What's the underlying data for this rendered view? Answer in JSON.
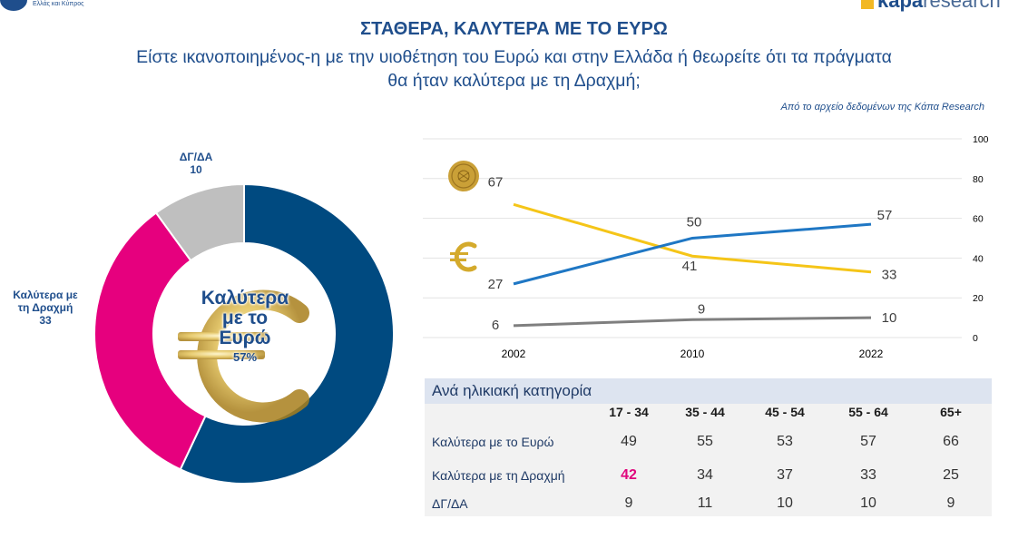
{
  "header": {
    "logo_left_text": "Ελλάς και Κύπρος",
    "logo_right_bold": "kapa",
    "logo_right_light": "research",
    "title": "ΣΤΑΘΕΡΑ, ΚΑΛΥΤΕΡΑ ΜΕ ΤΟ ΕΥΡΩ",
    "subtitle_line1": "Είστε ικανοποιημένος-η με την υιοθέτηση του Ευρώ και στην Ελλάδα ή θεωρείτε ότι τα πράγματα",
    "subtitle_line2": "θα ήταν καλύτερα με τη Δραχμή;",
    "source": "Από το αρχείο δεδομένων της Κάπα Research"
  },
  "colors": {
    "euro": "#004a80",
    "drachma": "#e6007e",
    "dk": "#bfbfbf",
    "line_euro": "#1f77c4",
    "line_drachma": "#f5c518",
    "line_dk": "#7f7f7f",
    "title": "#1f4e8c"
  },
  "icons": {
    "coin": "drachma-coin-icon",
    "euro": "euro-symbol-icon"
  },
  "donut": {
    "dk_label": "ΔΓ/ΔΑ",
    "dk_value": "10",
    "drachma_label_1": "Καλύτερα με",
    "drachma_label_2": "τη Δραχμή",
    "drachma_value": "33",
    "center_line1": "Καλύτερα",
    "center_line2": "με το",
    "center_line3": "Ευρώ",
    "center_value": "57%"
  },
  "chart_data": [
    {
      "type": "pie",
      "variant": "donut",
      "title": "",
      "slices": [
        {
          "label": "Καλύτερα με το Ευρώ",
          "value": 57,
          "color": "#004a80"
        },
        {
          "label": "Καλύτερα με τη Δραχμή",
          "value": 33,
          "color": "#e6007e"
        },
        {
          "label": "ΔΓ/ΔΑ",
          "value": 10,
          "color": "#bfbfbf"
        }
      ]
    },
    {
      "type": "line",
      "x": [
        "2002",
        "2010",
        "2022"
      ],
      "ylim": [
        0,
        100
      ],
      "yticks": [
        "0",
        "20",
        "40",
        "60",
        "80",
        "100"
      ],
      "y_axis_position": "right",
      "grid": true,
      "series": [
        {
          "key": "drachma",
          "values": [
            67,
            41,
            33
          ],
          "color": "#f5c518"
        },
        {
          "key": "euro",
          "values": [
            27,
            50,
            57
          ],
          "color": "#1f77c4"
        },
        {
          "key": "dk",
          "values": [
            6,
            9,
            10
          ],
          "color": "#7f7f7f"
        }
      ]
    },
    {
      "type": "table",
      "title": "Ανά ηλικιακή κατηγορία",
      "columns": [
        "17 - 34",
        "35 - 44",
        "45 - 54",
        "55 - 64",
        "65+"
      ],
      "rows": [
        {
          "label": "Καλύτερα με το Ευρώ",
          "values": [
            "49",
            "55",
            "53",
            "57",
            "66"
          ]
        },
        {
          "label": "Καλύτερα με τη Δραχμή",
          "values": [
            "42",
            "34",
            "37",
            "33",
            "25"
          ]
        },
        {
          "label": "ΔΓ/ΔΑ",
          "values": [
            "9",
            "11",
            "10",
            "10",
            "9"
          ]
        }
      ],
      "highlight": {
        "row": 1,
        "col": 0,
        "color": "#e6007e"
      }
    }
  ]
}
